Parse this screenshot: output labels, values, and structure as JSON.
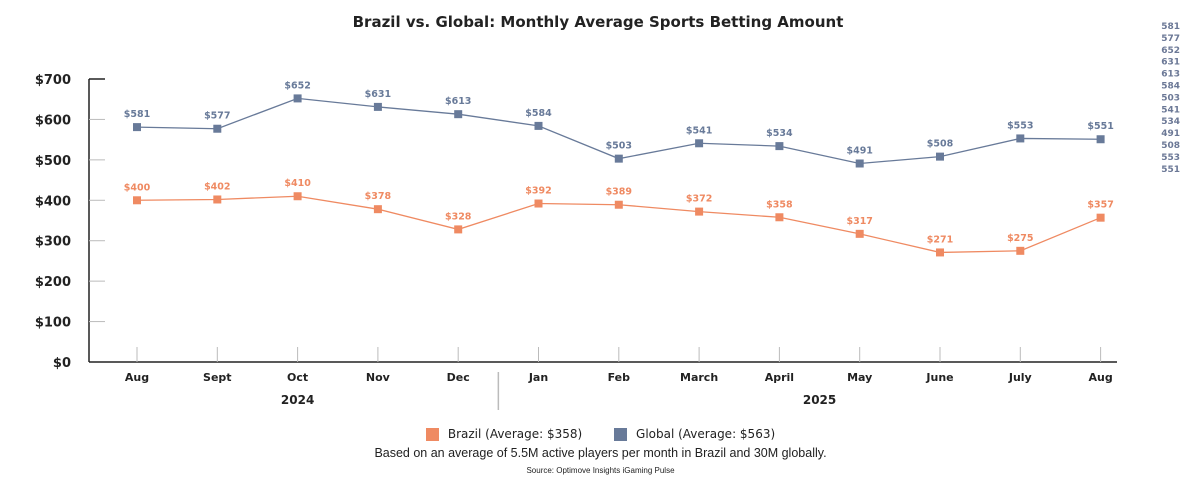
{
  "chart_data": {
    "type": "line",
    "title": "Brazil vs. Global: Monthly Average Sports Betting Amount",
    "xlabel": "",
    "ylabel": "",
    "categories": [
      "Aug",
      "Sept",
      "Oct",
      "Nov",
      "Dec",
      "Jan",
      "Feb",
      "March",
      "April",
      "May",
      "June",
      "July",
      "Aug"
    ],
    "year_groups": [
      {
        "label": "2024",
        "months": [
          "Aug",
          "Sept",
          "Oct",
          "Nov",
          "Dec"
        ]
      },
      {
        "label": "2025",
        "months": [
          "Jan",
          "Feb",
          "March",
          "April",
          "May",
          "June",
          "July",
          "Aug"
        ]
      }
    ],
    "ylim": [
      0,
      700
    ],
    "yticks": [
      0,
      100,
      200,
      300,
      400,
      500,
      600,
      700
    ],
    "ytick_labels": [
      "$0",
      "$100",
      "$200",
      "$300",
      "$400",
      "$500",
      "$600",
      "$700"
    ],
    "grid": false,
    "legend_position": "bottom",
    "series": [
      {
        "name": "Brazil",
        "legend_label": "Brazil (Average: $358)",
        "color": "#ef8a62",
        "values": [
          400,
          402,
          410,
          378,
          328,
          392,
          389,
          372,
          358,
          317,
          271,
          275,
          357
        ],
        "labels": [
          "$400",
          "$402",
          "$410",
          "$378",
          "$328",
          "$392",
          "$389",
          "$372",
          "$358",
          "$317",
          "$271",
          "$275",
          "$357"
        ]
      },
      {
        "name": "Global",
        "legend_label": "Global (Average: $563)",
        "color": "#687a99",
        "values": [
          581,
          577,
          652,
          631,
          613,
          584,
          503,
          541,
          534,
          491,
          508,
          553,
          551
        ],
        "labels": [
          "$581",
          "$577",
          "$652",
          "$631",
          "$613",
          "$584",
          "$503",
          "$541",
          "$534",
          "$491",
          "$508",
          "$553",
          "$551"
        ]
      }
    ],
    "side_annotation_values": [
      "581",
      "577",
      "652",
      "631",
      "613",
      "584",
      "503",
      "541",
      "534",
      "491",
      "508",
      "553",
      "551"
    ]
  },
  "note": "Based on an average of 5.5M active players per month in Brazil and 30M globally.",
  "source": "Source: Optimove Insights iGaming Pulse"
}
